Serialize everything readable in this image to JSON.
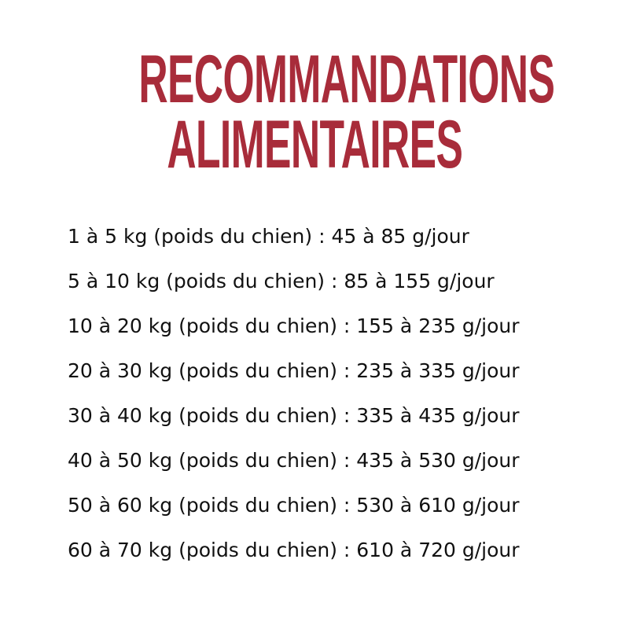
{
  "title": {
    "line1": "RECOMMANDATIONS",
    "line2": "ALIMENTAIRES",
    "color": "#a82c3a"
  },
  "rows": [
    "1 à 5 kg (poids du chien) : 45 à 85 g/jour",
    "5 à 10 kg (poids du chien) : 85 à 155 g/jour",
    "10 à 20 kg (poids du chien) : 155 à 235 g/jour",
    "20 à 30 kg (poids du chien) : 235 à 335 g/jour",
    "30 à 40 kg (poids du chien) : 335 à 435 g/jour",
    "40 à 50 kg (poids du chien) : 435 à 530 g/jour",
    "50 à 60 kg (poids du chien) : 530 à 610 g/jour",
    "60 à 70 kg (poids du chien) : 610 à 720 g/jour"
  ]
}
